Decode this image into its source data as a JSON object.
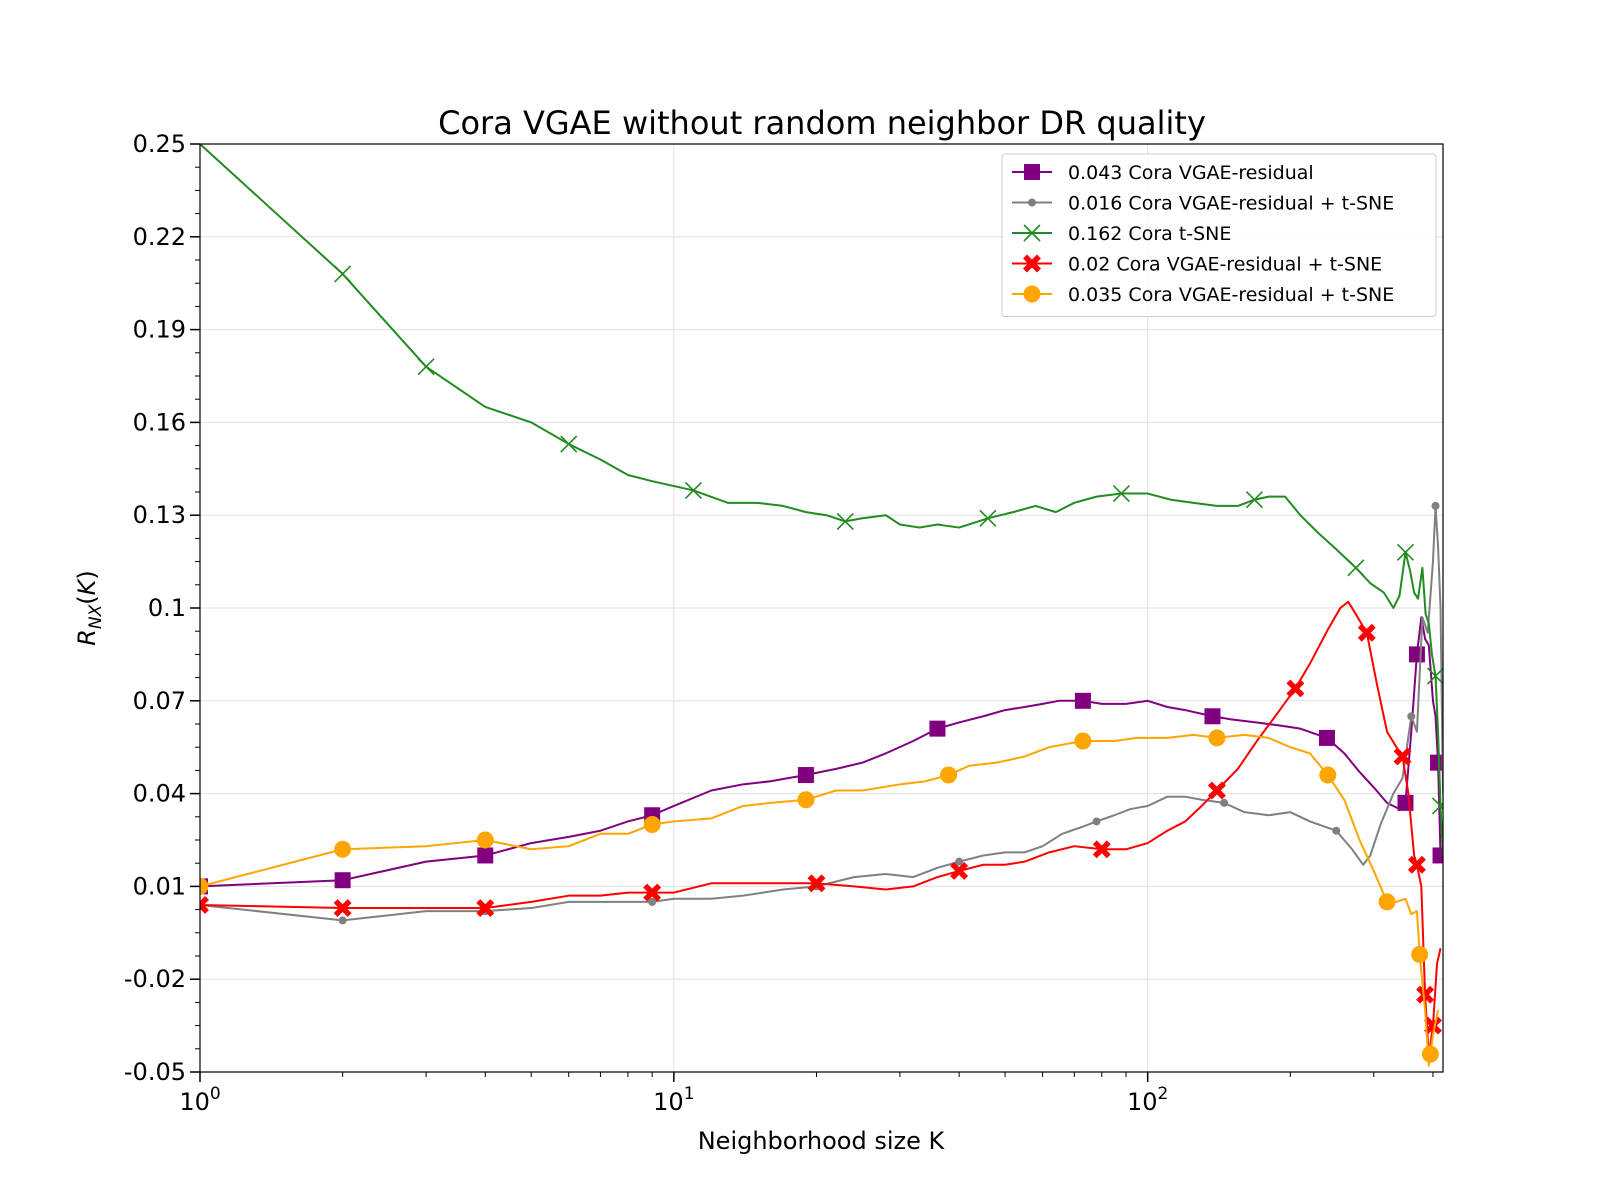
{
  "chart_data": {
    "type": "line",
    "title": "Cora VGAE without random neighbor DR quality",
    "xlabel": "Neighborhood size K",
    "ylabel": "R_NX(K)",
    "xscale": "log",
    "xlim": [
      1,
      420
    ],
    "ylim": [
      -0.05,
      0.25
    ],
    "yticks": [
      "0.25",
      "0.22",
      "0.19",
      "0.16",
      "0.13",
      "0.1",
      "0.07",
      "0.04",
      "0.01",
      "-0.02",
      "-0.05"
    ],
    "ytick_values": [
      0.25,
      0.22,
      0.19,
      0.16,
      0.13,
      0.1,
      0.07,
      0.04,
      0.01,
      -0.02,
      -0.05
    ],
    "xticks": [
      {
        "base": "10",
        "exp": "0",
        "value": 1
      },
      {
        "base": "10",
        "exp": "1",
        "value": 10
      },
      {
        "base": "10",
        "exp": "2",
        "value": 100
      }
    ],
    "grid": true,
    "legend_position": "top-right",
    "series": [
      {
        "name": "0.043 Cora VGAE-residual",
        "color": "#800080",
        "marker": "square",
        "markers_at": [
          1,
          2,
          4,
          9,
          19,
          36,
          73,
          137,
          239,
          350,
          370,
          410,
          415
        ],
        "points": [
          [
            1,
            0.01
          ],
          [
            2,
            0.012
          ],
          [
            3,
            0.018
          ],
          [
            4,
            0.02
          ],
          [
            5,
            0.024
          ],
          [
            6,
            0.026
          ],
          [
            7,
            0.028
          ],
          [
            8,
            0.031
          ],
          [
            9,
            0.033
          ],
          [
            10,
            0.036
          ],
          [
            12,
            0.041
          ],
          [
            14,
            0.043
          ],
          [
            16,
            0.044
          ],
          [
            19,
            0.046
          ],
          [
            22,
            0.048
          ],
          [
            25,
            0.05
          ],
          [
            28,
            0.053
          ],
          [
            32,
            0.057
          ],
          [
            36,
            0.061
          ],
          [
            40,
            0.063
          ],
          [
            45,
            0.065
          ],
          [
            50,
            0.067
          ],
          [
            55,
            0.068
          ],
          [
            60,
            0.069
          ],
          [
            65,
            0.07
          ],
          [
            73,
            0.07
          ],
          [
            80,
            0.069
          ],
          [
            90,
            0.069
          ],
          [
            100,
            0.07
          ],
          [
            110,
            0.068
          ],
          [
            120,
            0.067
          ],
          [
            137,
            0.065
          ],
          [
            150,
            0.064
          ],
          [
            170,
            0.063
          ],
          [
            190,
            0.062
          ],
          [
            210,
            0.061
          ],
          [
            239,
            0.058
          ],
          [
            260,
            0.053
          ],
          [
            280,
            0.047
          ],
          [
            300,
            0.042
          ],
          [
            320,
            0.037
          ],
          [
            340,
            0.035
          ],
          [
            350,
            0.037
          ],
          [
            360,
            0.06
          ],
          [
            370,
            0.085
          ],
          [
            378,
            0.097
          ],
          [
            385,
            0.09
          ],
          [
            392,
            0.088
          ],
          [
            400,
            0.07
          ],
          [
            405,
            0.065
          ],
          [
            410,
            0.05
          ],
          [
            415,
            0.02
          ]
        ]
      },
      {
        "name": "0.016 Cora VGAE-residual + t-SNE",
        "color": "#808080",
        "marker": "dot",
        "markers_at": [
          1,
          2,
          4,
          9,
          20,
          40,
          78,
          145,
          250,
          360,
          405
        ],
        "points": [
          [
            1,
            0.004
          ],
          [
            2,
            -0.001
          ],
          [
            3,
            0.002
          ],
          [
            4,
            0.002
          ],
          [
            5,
            0.003
          ],
          [
            6,
            0.005
          ],
          [
            7,
            0.005
          ],
          [
            8,
            0.005
          ],
          [
            9,
            0.005
          ],
          [
            10,
            0.006
          ],
          [
            12,
            0.006
          ],
          [
            14,
            0.007
          ],
          [
            17,
            0.009
          ],
          [
            20,
            0.01
          ],
          [
            24,
            0.013
          ],
          [
            28,
            0.014
          ],
          [
            32,
            0.013
          ],
          [
            36,
            0.016
          ],
          [
            40,
            0.018
          ],
          [
            45,
            0.02
          ],
          [
            50,
            0.021
          ],
          [
            55,
            0.021
          ],
          [
            60,
            0.023
          ],
          [
            66,
            0.027
          ],
          [
            72,
            0.029
          ],
          [
            78,
            0.031
          ],
          [
            85,
            0.033
          ],
          [
            92,
            0.035
          ],
          [
            100,
            0.036
          ],
          [
            110,
            0.039
          ],
          [
            120,
            0.039
          ],
          [
            130,
            0.038
          ],
          [
            145,
            0.037
          ],
          [
            160,
            0.034
          ],
          [
            180,
            0.033
          ],
          [
            200,
            0.034
          ],
          [
            220,
            0.031
          ],
          [
            250,
            0.028
          ],
          [
            270,
            0.022
          ],
          [
            285,
            0.017
          ],
          [
            295,
            0.02
          ],
          [
            310,
            0.03
          ],
          [
            330,
            0.04
          ],
          [
            345,
            0.045
          ],
          [
            360,
            0.065
          ],
          [
            370,
            0.06
          ],
          [
            380,
            0.097
          ],
          [
            390,
            0.092
          ],
          [
            400,
            0.115
          ],
          [
            405,
            0.133
          ],
          [
            410,
            0.12
          ],
          [
            415,
            0.1
          ],
          [
            420,
            0.04
          ]
        ]
      },
      {
        "name": "0.162 Cora t-SNE",
        "color": "#228b22",
        "marker": "x",
        "markers_at": [
          2,
          3,
          6,
          11,
          23,
          46,
          88,
          168,
          275,
          350,
          405,
          415
        ],
        "points": [
          [
            1,
            0.25
          ],
          [
            2,
            0.208
          ],
          [
            3,
            0.178
          ],
          [
            4,
            0.165
          ],
          [
            5,
            0.16
          ],
          [
            6,
            0.153
          ],
          [
            7,
            0.148
          ],
          [
            8,
            0.143
          ],
          [
            9,
            0.141
          ],
          [
            11,
            0.138
          ],
          [
            13,
            0.134
          ],
          [
            15,
            0.134
          ],
          [
            17,
            0.133
          ],
          [
            19,
            0.131
          ],
          [
            21,
            0.13
          ],
          [
            23,
            0.128
          ],
          [
            25,
            0.129
          ],
          [
            28,
            0.13
          ],
          [
            30,
            0.127
          ],
          [
            33,
            0.126
          ],
          [
            36,
            0.127
          ],
          [
            40,
            0.126
          ],
          [
            46,
            0.129
          ],
          [
            52,
            0.131
          ],
          [
            58,
            0.133
          ],
          [
            64,
            0.131
          ],
          [
            70,
            0.134
          ],
          [
            78,
            0.136
          ],
          [
            88,
            0.137
          ],
          [
            100,
            0.137
          ],
          [
            112,
            0.135
          ],
          [
            125,
            0.134
          ],
          [
            140,
            0.133
          ],
          [
            155,
            0.133
          ],
          [
            168,
            0.135
          ],
          [
            180,
            0.136
          ],
          [
            195,
            0.136
          ],
          [
            210,
            0.13
          ],
          [
            230,
            0.124
          ],
          [
            250,
            0.119
          ],
          [
            275,
            0.113
          ],
          [
            295,
            0.108
          ],
          [
            315,
            0.105
          ],
          [
            330,
            0.1
          ],
          [
            340,
            0.104
          ],
          [
            350,
            0.118
          ],
          [
            358,
            0.112
          ],
          [
            365,
            0.105
          ],
          [
            372,
            0.103
          ],
          [
            380,
            0.113
          ],
          [
            386,
            0.098
          ],
          [
            392,
            0.095
          ],
          [
            398,
            0.085
          ],
          [
            405,
            0.078
          ],
          [
            410,
            0.06
          ],
          [
            415,
            0.036
          ],
          [
            420,
            0.02
          ]
        ]
      },
      {
        "name": "0.02 Cora VGAE-residual + t-SNE",
        "color": "#ff0000",
        "marker": "X",
        "markers_at": [
          1,
          2,
          4,
          9,
          20,
          40,
          80,
          140,
          205,
          290,
          345,
          370,
          385,
          400
        ],
        "points": [
          [
            1,
            0.004
          ],
          [
            2,
            0.003
          ],
          [
            3,
            0.003
          ],
          [
            4,
            0.003
          ],
          [
            5,
            0.005
          ],
          [
            6,
            0.007
          ],
          [
            7,
            0.007
          ],
          [
            8,
            0.008
          ],
          [
            9,
            0.008
          ],
          [
            10,
            0.008
          ],
          [
            12,
            0.011
          ],
          [
            14,
            0.011
          ],
          [
            17,
            0.011
          ],
          [
            20,
            0.011
          ],
          [
            24,
            0.01
          ],
          [
            28,
            0.009
          ],
          [
            32,
            0.01
          ],
          [
            36,
            0.013
          ],
          [
            40,
            0.015
          ],
          [
            45,
            0.017
          ],
          [
            50,
            0.017
          ],
          [
            55,
            0.018
          ],
          [
            62,
            0.021
          ],
          [
            70,
            0.023
          ],
          [
            80,
            0.022
          ],
          [
            90,
            0.022
          ],
          [
            100,
            0.024
          ],
          [
            110,
            0.028
          ],
          [
            120,
            0.031
          ],
          [
            130,
            0.036
          ],
          [
            140,
            0.041
          ],
          [
            155,
            0.048
          ],
          [
            170,
            0.057
          ],
          [
            190,
            0.067
          ],
          [
            205,
            0.074
          ],
          [
            220,
            0.082
          ],
          [
            240,
            0.093
          ],
          [
            255,
            0.1
          ],
          [
            265,
            0.102
          ],
          [
            275,
            0.098
          ],
          [
            290,
            0.092
          ],
          [
            305,
            0.075
          ],
          [
            320,
            0.06
          ],
          [
            335,
            0.055
          ],
          [
            345,
            0.052
          ],
          [
            355,
            0.04
          ],
          [
            365,
            0.02
          ],
          [
            370,
            0.017
          ],
          [
            378,
            0.01
          ],
          [
            385,
            -0.025
          ],
          [
            392,
            -0.045
          ],
          [
            400,
            -0.035
          ],
          [
            408,
            -0.015
          ],
          [
            415,
            -0.01
          ]
        ]
      },
      {
        "name": "0.035 Cora VGAE-residual + t-SNE",
        "color": "#ffa500",
        "marker": "circle",
        "markers_at": [
          1,
          2,
          4,
          9,
          19,
          38,
          73,
          140,
          240,
          320,
          375,
          395
        ],
        "points": [
          [
            1,
            0.01
          ],
          [
            2,
            0.022
          ],
          [
            3,
            0.023
          ],
          [
            4,
            0.025
          ],
          [
            5,
            0.022
          ],
          [
            6,
            0.023
          ],
          [
            7,
            0.027
          ],
          [
            8,
            0.027
          ],
          [
            9,
            0.03
          ],
          [
            10,
            0.031
          ],
          [
            12,
            0.032
          ],
          [
            14,
            0.036
          ],
          [
            16,
            0.037
          ],
          [
            19,
            0.038
          ],
          [
            22,
            0.041
          ],
          [
            25,
            0.041
          ],
          [
            30,
            0.043
          ],
          [
            34,
            0.044
          ],
          [
            38,
            0.046
          ],
          [
            42,
            0.049
          ],
          [
            48,
            0.05
          ],
          [
            55,
            0.052
          ],
          [
            62,
            0.055
          ],
          [
            73,
            0.057
          ],
          [
            85,
            0.057
          ],
          [
            95,
            0.058
          ],
          [
            110,
            0.058
          ],
          [
            125,
            0.059
          ],
          [
            140,
            0.058
          ],
          [
            160,
            0.059
          ],
          [
            180,
            0.058
          ],
          [
            200,
            0.055
          ],
          [
            220,
            0.053
          ],
          [
            240,
            0.046
          ],
          [
            260,
            0.038
          ],
          [
            280,
            0.025
          ],
          [
            300,
            0.015
          ],
          [
            320,
            0.005
          ],
          [
            335,
            0.005
          ],
          [
            350,
            0.006
          ],
          [
            360,
            0.001
          ],
          [
            370,
            0.002
          ],
          [
            375,
            -0.012
          ],
          [
            385,
            -0.03
          ],
          [
            392,
            -0.048
          ],
          [
            400,
            -0.038
          ],
          [
            410,
            -0.03
          ]
        ]
      }
    ]
  }
}
